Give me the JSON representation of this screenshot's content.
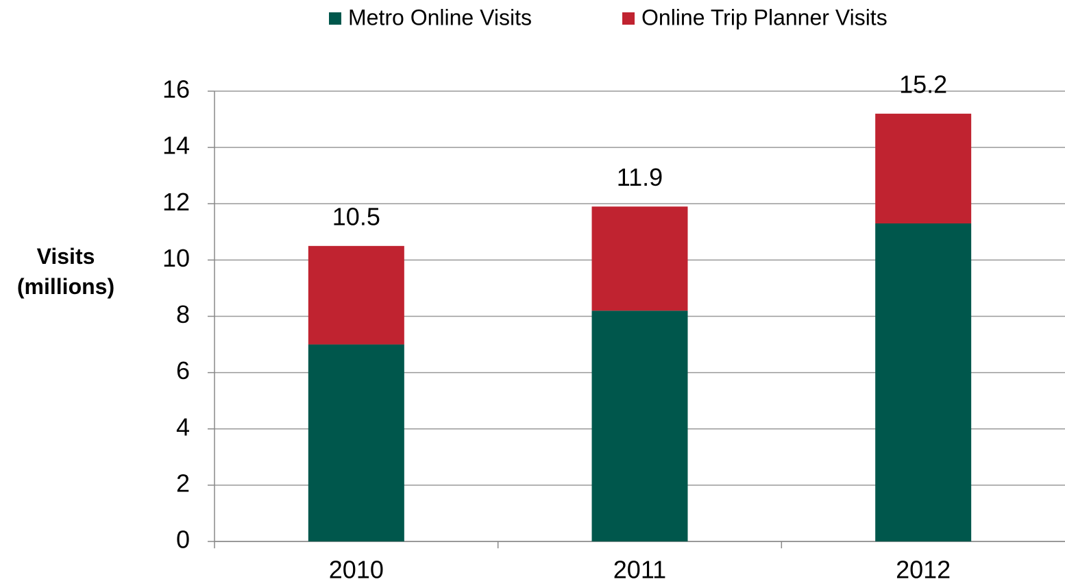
{
  "chart_data": {
    "type": "stacked_bar",
    "y_label": "Visits (millions)",
    "categories": [
      "2010",
      "2011",
      "2012"
    ],
    "series": [
      {
        "name": "Metro Online Visits",
        "color": "#00574c",
        "values": [
          7.0,
          8.2,
          11.3
        ]
      },
      {
        "name": "Online Trip Planner Visits",
        "color": "#c02330",
        "values": [
          3.5,
          3.7,
          3.9
        ]
      }
    ],
    "totals": [
      10.5,
      11.9,
      15.2
    ],
    "ylim": [
      0,
      16
    ],
    "yticks": [
      0,
      2,
      4,
      6,
      8,
      10,
      12,
      14,
      16
    ],
    "grid": true,
    "legend": "top"
  }
}
